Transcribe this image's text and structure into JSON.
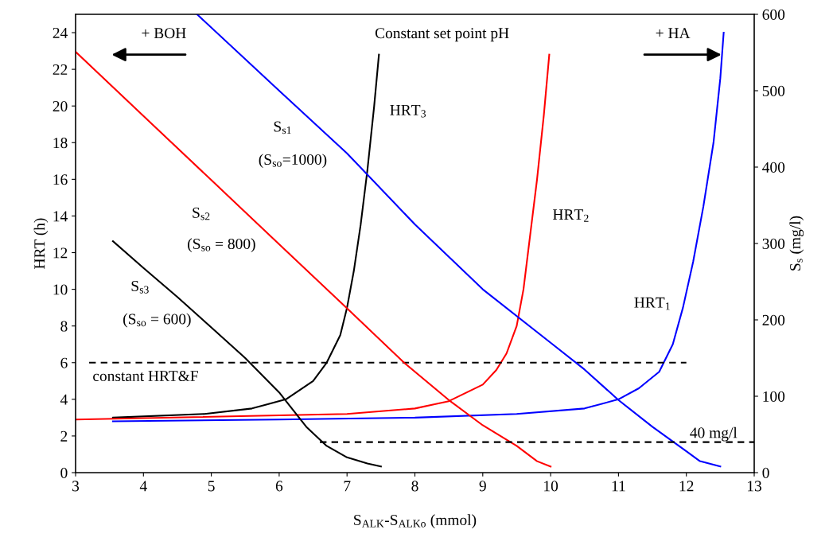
{
  "chart_data": {
    "type": "line",
    "xlabel": "S$_{ALK}$-S$_{ALKo}$ (mmol)",
    "ylabel": "HRT (h)",
    "y2label": "S$_{s}$ (mg/l)",
    "xlim": [
      3,
      13
    ],
    "xticks": [
      3,
      4,
      5,
      6,
      7,
      8,
      9,
      10,
      11,
      12,
      13
    ],
    "ylim": [
      0,
      25
    ],
    "yticks": [
      0,
      2,
      4,
      6,
      8,
      10,
      12,
      14,
      16,
      18,
      20,
      22,
      24
    ],
    "y2lim": [
      0,
      600
    ],
    "y2ticks": [
      0,
      100,
      200,
      300,
      400,
      500,
      600
    ],
    "grid": false,
    "legend": false,
    "marker": "none",
    "series": [
      {
        "name": "HRT$_{3}$",
        "color": "#000000",
        "x": [
          3.55,
          4.9,
          5.6,
          6.1,
          6.5,
          6.7,
          6.9,
          7.0,
          7.1,
          7.2,
          7.3,
          7.4,
          7.47
        ],
        "values": [
          3.0,
          3.2,
          3.5,
          4.0,
          5.0,
          6.0,
          7.5,
          9.0,
          11.0,
          13.5,
          16.5,
          20.0,
          22.8
        ]
      },
      {
        "name": "HRT$_{2}$",
        "color": "#ff0000",
        "x": [
          3,
          7,
          8,
          8.5,
          9,
          9.2,
          9.35,
          9.5,
          9.6,
          9.7,
          9.8,
          9.9,
          9.98
        ],
        "values": [
          2.9,
          3.2,
          3.5,
          3.9,
          4.8,
          5.6,
          6.5,
          8.0,
          10.0,
          13.0,
          16.0,
          19.5,
          22.8
        ]
      },
      {
        "name": "HRT$_{1}$",
        "color": "#0000ff",
        "x": [
          3.55,
          6,
          8,
          9.5,
          10.5,
          11,
          11.3,
          11.6,
          11.8,
          11.95,
          12.1,
          12.25,
          12.4,
          12.5,
          12.55
        ],
        "values": [
          2.8,
          2.9,
          3.0,
          3.2,
          3.5,
          4.0,
          4.6,
          5.5,
          7.0,
          9.0,
          11.5,
          14.5,
          18.0,
          21.5,
          24.0
        ]
      },
      {
        "name": "S$_{s1}$",
        "color": "#0000ff",
        "axis": "y2",
        "x": [
          4.79,
          6,
          7,
          8,
          9,
          10,
          10.5,
          11,
          11.5,
          12,
          12.2,
          12.5
        ],
        "values": [
          600,
          500,
          418,
          325,
          240,
          170,
          135,
          95,
          60,
          28,
          15,
          8
        ]
      },
      {
        "name": "S$_{s2}$",
        "color": "#ff0000",
        "axis": "y2",
        "x": [
          3,
          4,
          5,
          6,
          7,
          7.84,
          8.5,
          9,
          9.5,
          9.8,
          10
        ],
        "values": [
          551,
          467,
          383,
          299,
          215,
          144,
          95,
          62,
          35,
          15,
          8
        ]
      },
      {
        "name": "S$_{s3}$",
        "color": "#000000",
        "axis": "y2",
        "x": [
          3.55,
          4,
          4.5,
          5,
          5.5,
          6,
          6.4,
          6.7,
          7,
          7.3,
          7.5
        ],
        "values": [
          303,
          268,
          230,
          190,
          150,
          105,
          60,
          35,
          20,
          12,
          8
        ]
      },
      {
        "color": "#000000",
        "line_style": "dashed",
        "x": [
          3.2,
          12
        ],
        "values": [
          6,
          6
        ]
      },
      {
        "color": "#000000",
        "line_style": "dashed",
        "axis": "y2",
        "x": [
          6.6,
          13
        ],
        "values": [
          40,
          40
        ]
      }
    ],
    "annotations": [
      "+ BOH",
      "+ HA",
      "Constant set point pH",
      "constant HRT&F",
      "40 mg/l",
      "(S$_{so}$=1000)",
      "(S$_{so}$ = 800)",
      "(S$_{so}$ = 600)"
    ]
  }
}
